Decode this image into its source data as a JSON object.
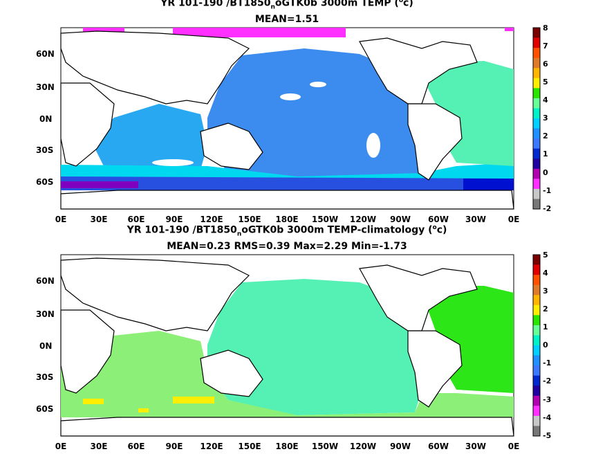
{
  "panels": [
    {
      "title_prefix": "YR 101-190 /BT1850",
      "title_sub": "n",
      "title_mid": "oGTK0b 3000m TEMP (",
      "title_sup": "o",
      "title_end": "c)",
      "stats": "MEAN=1.51",
      "lat_labels": [
        "60N",
        "30N",
        "0N",
        "30S",
        "60S"
      ],
      "lon_labels": [
        "0E",
        "30E",
        "60E",
        "90E",
        "120E",
        "150E",
        "180E",
        "150W",
        "120W",
        "90W",
        "60W",
        "30W",
        "0E"
      ],
      "colorbar_labels": [
        "8",
        "7",
        "6",
        "5",
        "4",
        "3",
        "2",
        "1",
        "0",
        "-1",
        "-2"
      ]
    },
    {
      "title_prefix": "YR 101-190 /BT1850",
      "title_sub": "n",
      "title_mid": "oGTK0b 3000m TEMP-climatology (",
      "title_sup": "o",
      "title_end": "c)",
      "stats": "MEAN=0.23   RMS=0.39   Max=2.29   Min=-1.73",
      "lat_labels": [
        "60N",
        "30N",
        "0N",
        "30S",
        "60S"
      ],
      "lon_labels": [
        "0E",
        "30E",
        "60E",
        "90E",
        "120E",
        "150E",
        "180E",
        "150W",
        "120W",
        "90W",
        "60W",
        "30W",
        "0E"
      ],
      "colorbar_labels": [
        "5",
        "4",
        "3",
        "2",
        "1",
        "0",
        "-1",
        "-2",
        "-3",
        "-4",
        "-5"
      ]
    }
  ],
  "colors": {
    "scale": [
      "#7a0000",
      "#e00000",
      "#ff5000",
      "#e07a28",
      "#ffb400",
      "#ffee00",
      "#28e600",
      "#66ff99",
      "#00f0c8",
      "#00d0ff",
      "#1e90ff",
      "#3c78ff",
      "#0028d0",
      "#2000a0",
      "#b000b0",
      "#ff30ff",
      "#c8c8c8",
      "#787878"
    ]
  }
}
